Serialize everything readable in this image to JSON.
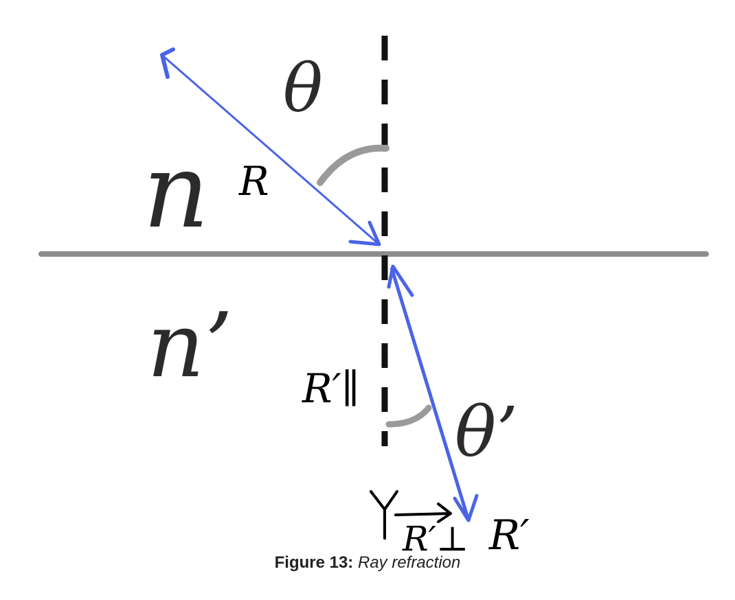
{
  "diagram": {
    "labels": {
      "n_upper": "n",
      "n_lower": "n’",
      "theta": "θ",
      "theta_prime": "θ’",
      "R": "R",
      "R_prime_parallel": "R′∥",
      "R_prime_perp": "R′⊥",
      "R_prime": "R′"
    },
    "colors": {
      "ray": "#4a63e8",
      "interface": "#8c8c8c",
      "normal": "#111111",
      "angle_arc": "#9a9a9a"
    }
  },
  "caption": {
    "label": "Figure 13:",
    "text": "Ray refraction"
  }
}
